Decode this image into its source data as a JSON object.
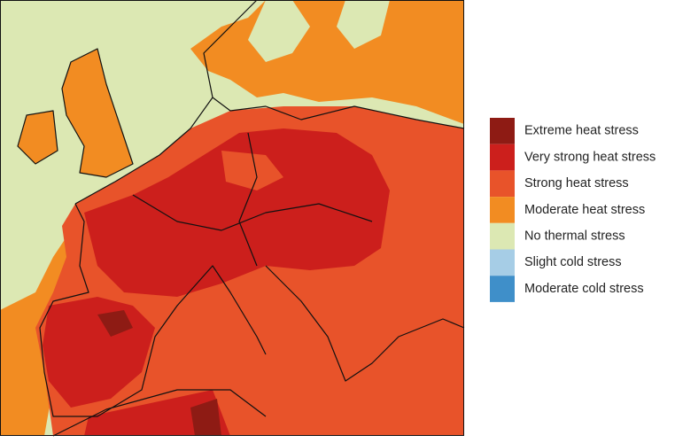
{
  "legend": {
    "items": [
      {
        "label": "Extreme heat stress",
        "color": "#8e1b14"
      },
      {
        "label": "Very strong heat stress",
        "color": "#cc1f1c"
      },
      {
        "label": "Strong heat stress",
        "color": "#e8532a"
      },
      {
        "label": "Moderate heat stress",
        "color": "#f28c22"
      },
      {
        "label": "No thermal stress",
        "color": "#dce8b3"
      },
      {
        "label": "Slight cold stress",
        "color": "#a6cde6"
      },
      {
        "label": "Moderate cold stress",
        "color": "#3f8fc9"
      }
    ]
  }
}
